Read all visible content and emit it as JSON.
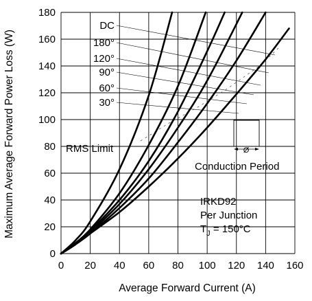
{
  "chart_data": {
    "type": "line",
    "xlabel": "Average Forward Current (A)",
    "ylabel": "Maximum Average Forward Power Loss (W)",
    "xlim": [
      0,
      160
    ],
    "ylim": [
      0,
      180
    ],
    "xticks": [
      "0",
      "20",
      "40",
      "60",
      "80",
      "100",
      "120",
      "140",
      "160"
    ],
    "yticks": [
      "0",
      "20",
      "40",
      "60",
      "80",
      "100",
      "120",
      "140",
      "160",
      "180"
    ],
    "grid": true,
    "series": [
      {
        "name": "DC",
        "x": [
          0,
          10,
          20,
          40,
          60,
          80,
          100,
          120,
          140,
          156
        ],
        "y": [
          0,
          7,
          15,
          31,
          50,
          71,
          94,
          119,
          145,
          168
        ]
      },
      {
        "name": "180°",
        "x": [
          0,
          10,
          20,
          40,
          60,
          80,
          100,
          120,
          140
        ],
        "y": [
          0,
          7,
          15,
          34,
          56,
          83,
          112,
          144,
          180
        ]
      },
      {
        "name": "120°",
        "x": [
          0,
          10,
          20,
          40,
          60,
          80,
          100,
          124
        ],
        "y": [
          0,
          7,
          16,
          37,
          63,
          94,
          129,
          180
        ]
      },
      {
        "name": "90°",
        "x": [
          0,
          10,
          20,
          40,
          60,
          80,
          100,
          112
        ],
        "y": [
          0,
          7,
          17,
          40,
          69,
          106,
          151,
          180
        ]
      },
      {
        "name": "60°",
        "x": [
          0,
          10,
          20,
          40,
          60,
          80,
          99
        ],
        "y": [
          0,
          8,
          18,
          45,
          81,
          125,
          180
        ]
      },
      {
        "name": "30°",
        "x": [
          0,
          10,
          20,
          40,
          60,
          76
        ],
        "y": [
          0,
          10,
          24,
          63,
          118,
          180
        ]
      }
    ],
    "annotations": {
      "rms_limit": "RMS Limit",
      "conduction_period": "Conduction Period",
      "phi": "Ø",
      "device": "IRKD92",
      "per_junction": "Per Junction",
      "tj_symbol": "T",
      "tj_subscript": "J",
      "tj_value": " = 150°C"
    }
  }
}
